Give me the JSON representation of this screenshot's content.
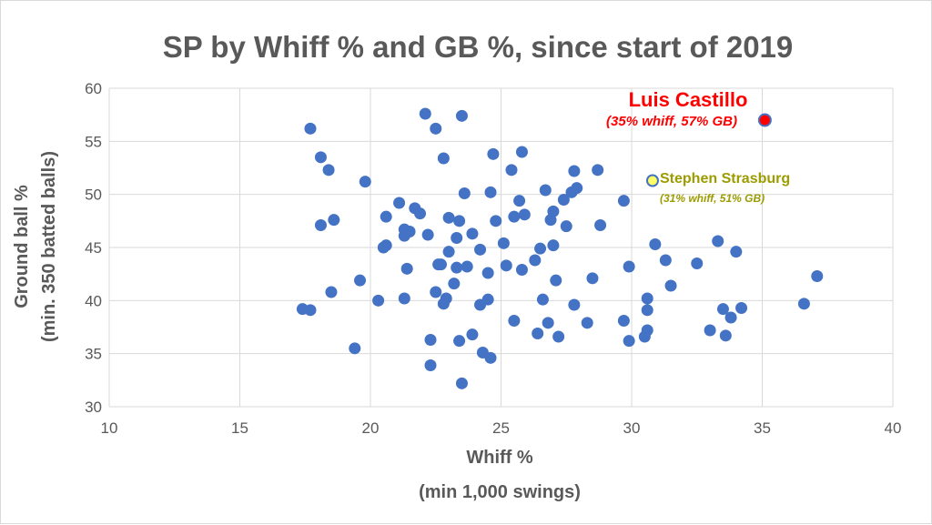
{
  "chart_data": {
    "type": "scatter",
    "title": "SP by Whiff % and GB %, since start of 2019",
    "xlabel": "Whiff %",
    "xlabel_sub": "(min 1,000 swings)",
    "ylabel": "Ground ball %",
    "ylabel_sub": "(min. 350 batted balls)",
    "xlim": [
      10,
      40
    ],
    "ylim": [
      30,
      60
    ],
    "xticks": [
      "10",
      "15",
      "20",
      "25",
      "30",
      "35",
      "40"
    ],
    "yticks": [
      "30",
      "35",
      "40",
      "45",
      "50",
      "55",
      "60"
    ],
    "grid": true,
    "legend": "none",
    "colors": {
      "points": "#4472c4",
      "highlight_castillo": "#ff0000",
      "highlight_strasburg": "#ffff66",
      "strasburg_label": "#9c9c00",
      "text": "#595959",
      "grid": "#d9d9d9"
    },
    "points": [
      {
        "x": 17.7,
        "y": 56.2
      },
      {
        "x": 18.1,
        "y": 53.5
      },
      {
        "x": 18.4,
        "y": 52.3
      },
      {
        "x": 19.8,
        "y": 51.2
      },
      {
        "x": 18.1,
        "y": 47.1
      },
      {
        "x": 18.6,
        "y": 47.6
      },
      {
        "x": 17.4,
        "y": 39.2
      },
      {
        "x": 17.7,
        "y": 39.1
      },
      {
        "x": 18.5,
        "y": 40.8
      },
      {
        "x": 19.6,
        "y": 41.9
      },
      {
        "x": 19.4,
        "y": 35.5
      },
      {
        "x": 20.3,
        "y": 40.0
      },
      {
        "x": 20.6,
        "y": 47.9
      },
      {
        "x": 20.5,
        "y": 45.0
      },
      {
        "x": 20.6,
        "y": 45.2
      },
      {
        "x": 21.1,
        "y": 49.2
      },
      {
        "x": 21.3,
        "y": 46.7
      },
      {
        "x": 21.3,
        "y": 46.1
      },
      {
        "x": 21.5,
        "y": 46.5
      },
      {
        "x": 21.7,
        "y": 48.7
      },
      {
        "x": 21.9,
        "y": 48.2
      },
      {
        "x": 22.2,
        "y": 46.2
      },
      {
        "x": 21.4,
        "y": 43.0
      },
      {
        "x": 21.3,
        "y": 40.2
      },
      {
        "x": 22.1,
        "y": 57.6
      },
      {
        "x": 22.5,
        "y": 56.2
      },
      {
        "x": 23.5,
        "y": 57.4
      },
      {
        "x": 22.8,
        "y": 53.4
      },
      {
        "x": 23.6,
        "y": 50.1
      },
      {
        "x": 23.0,
        "y": 47.8
      },
      {
        "x": 23.4,
        "y": 47.5
      },
      {
        "x": 23.9,
        "y": 46.3
      },
      {
        "x": 23.3,
        "y": 45.9
      },
      {
        "x": 23.0,
        "y": 44.6
      },
      {
        "x": 22.6,
        "y": 43.4
      },
      {
        "x": 22.7,
        "y": 43.4
      },
      {
        "x": 23.3,
        "y": 43.1
      },
      {
        "x": 23.7,
        "y": 43.2
      },
      {
        "x": 24.2,
        "y": 44.8
      },
      {
        "x": 22.5,
        "y": 40.8
      },
      {
        "x": 23.2,
        "y": 41.6
      },
      {
        "x": 22.9,
        "y": 40.2
      },
      {
        "x": 22.8,
        "y": 39.7
      },
      {
        "x": 22.3,
        "y": 36.3
      },
      {
        "x": 22.3,
        "y": 33.9
      },
      {
        "x": 23.4,
        "y": 36.2
      },
      {
        "x": 23.9,
        "y": 36.8
      },
      {
        "x": 24.3,
        "y": 35.1
      },
      {
        "x": 24.6,
        "y": 34.6
      },
      {
        "x": 23.5,
        "y": 32.2
      },
      {
        "x": 24.2,
        "y": 39.6
      },
      {
        "x": 24.5,
        "y": 40.1
      },
      {
        "x": 24.5,
        "y": 42.6
      },
      {
        "x": 24.7,
        "y": 53.8
      },
      {
        "x": 24.6,
        "y": 50.2
      },
      {
        "x": 24.8,
        "y": 47.5
      },
      {
        "x": 25.1,
        "y": 45.4
      },
      {
        "x": 25.2,
        "y": 43.3
      },
      {
        "x": 25.4,
        "y": 52.3
      },
      {
        "x": 25.8,
        "y": 54.0
      },
      {
        "x": 25.7,
        "y": 49.4
      },
      {
        "x": 25.5,
        "y": 47.9
      },
      {
        "x": 25.9,
        "y": 48.1
      },
      {
        "x": 25.8,
        "y": 42.9
      },
      {
        "x": 26.3,
        "y": 43.8
      },
      {
        "x": 26.5,
        "y": 44.9
      },
      {
        "x": 26.7,
        "y": 50.4
      },
      {
        "x": 27.0,
        "y": 48.4
      },
      {
        "x": 26.9,
        "y": 47.6
      },
      {
        "x": 27.0,
        "y": 45.2
      },
      {
        "x": 27.1,
        "y": 41.9
      },
      {
        "x": 26.6,
        "y": 40.1
      },
      {
        "x": 26.8,
        "y": 37.9
      },
      {
        "x": 26.4,
        "y": 36.9
      },
      {
        "x": 27.2,
        "y": 36.6
      },
      {
        "x": 25.5,
        "y": 38.1
      },
      {
        "x": 27.4,
        "y": 49.5
      },
      {
        "x": 27.7,
        "y": 50.2
      },
      {
        "x": 27.9,
        "y": 50.6
      },
      {
        "x": 27.8,
        "y": 52.2
      },
      {
        "x": 27.5,
        "y": 47.0
      },
      {
        "x": 28.7,
        "y": 52.3
      },
      {
        "x": 28.8,
        "y": 47.1
      },
      {
        "x": 28.5,
        "y": 42.1
      },
      {
        "x": 27.8,
        "y": 39.6
      },
      {
        "x": 28.3,
        "y": 37.9
      },
      {
        "x": 29.7,
        "y": 49.4
      },
      {
        "x": 29.9,
        "y": 43.2
      },
      {
        "x": 29.7,
        "y": 38.1
      },
      {
        "x": 29.9,
        "y": 36.2
      },
      {
        "x": 30.5,
        "y": 36.6
      },
      {
        "x": 30.6,
        "y": 37.2
      },
      {
        "x": 30.6,
        "y": 39.1
      },
      {
        "x": 30.6,
        "y": 40.2
      },
      {
        "x": 30.9,
        "y": 45.3
      },
      {
        "x": 31.3,
        "y": 43.8
      },
      {
        "x": 31.5,
        "y": 41.4
      },
      {
        "x": 32.5,
        "y": 43.5
      },
      {
        "x": 33.0,
        "y": 37.2
      },
      {
        "x": 33.3,
        "y": 45.6
      },
      {
        "x": 33.5,
        "y": 39.2
      },
      {
        "x": 33.6,
        "y": 36.7
      },
      {
        "x": 33.8,
        "y": 38.4
      },
      {
        "x": 34.0,
        "y": 44.6
      },
      {
        "x": 34.2,
        "y": 39.3
      },
      {
        "x": 36.6,
        "y": 39.7
      },
      {
        "x": 37.1,
        "y": 42.3
      }
    ],
    "annotations": [
      {
        "name": "Luis Castillo",
        "detail": "(35% whiff, 57% GB)",
        "x": 35.1,
        "y": 57.0
      },
      {
        "name": "Stephen Strasburg",
        "detail": "(31% whiff, 51% GB)",
        "x": 30.8,
        "y": 51.3
      }
    ]
  }
}
